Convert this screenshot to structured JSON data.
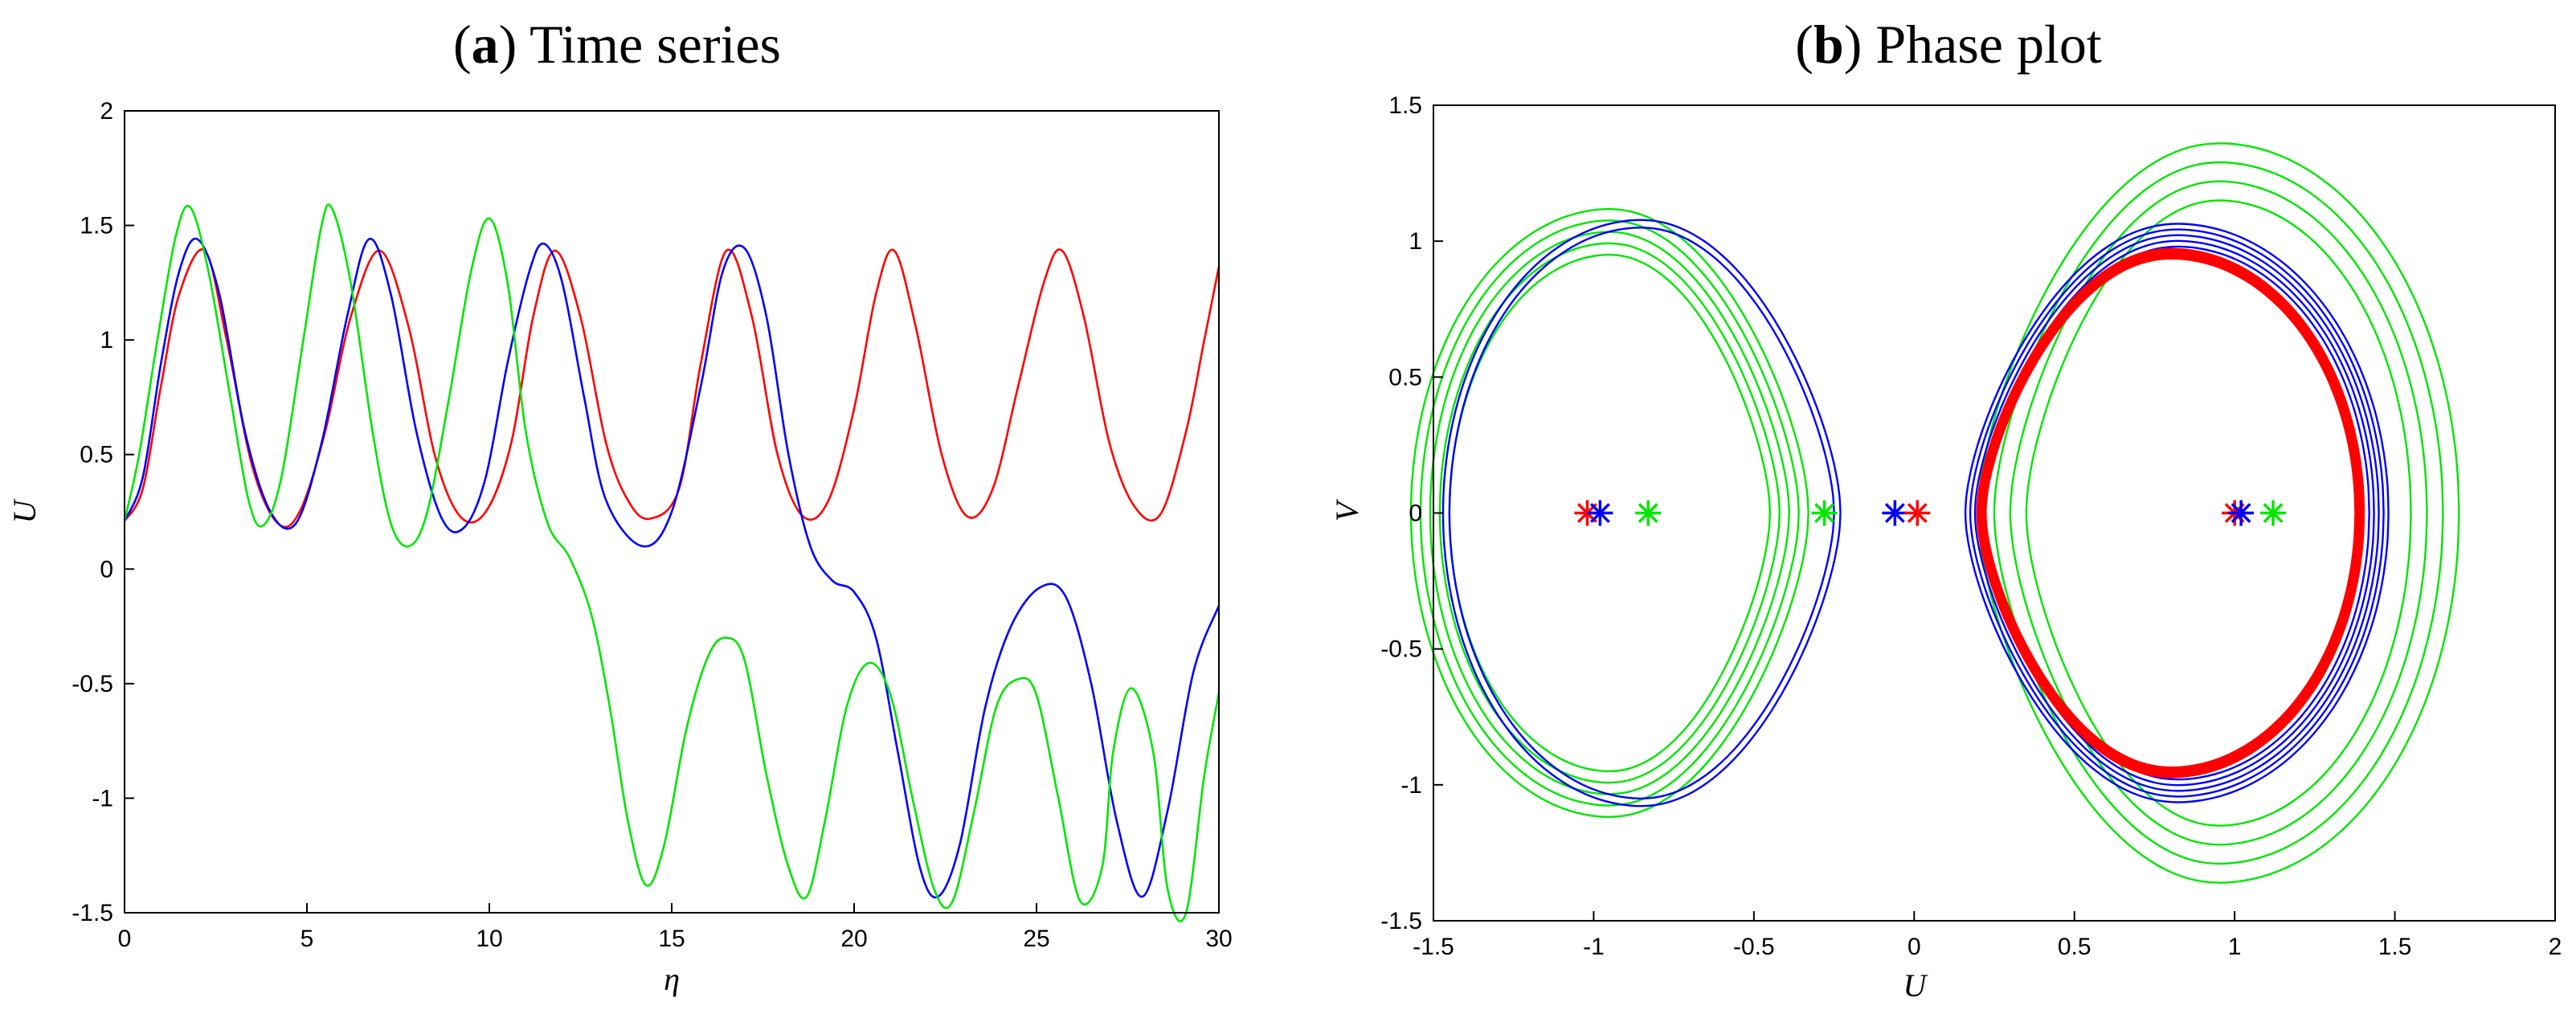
{
  "chart_data": [
    {
      "type": "line",
      "title_letter": "a",
      "title_rest": "Time series",
      "xlabel": "η",
      "ylabel": "U",
      "xlim": [
        0,
        30
      ],
      "ylim": [
        -1.5,
        2
      ],
      "xticks": [
        "0",
        "5",
        "10",
        "15",
        "20",
        "25",
        "30"
      ],
      "yticks": [
        "-1.5",
        "-1",
        "-0.5",
        "0",
        "0.5",
        "1",
        "1.5",
        "2"
      ],
      "grid": false,
      "series": [
        {
          "color": "#ff0000",
          "x": [
            0,
            0.5,
            1,
            1.5,
            2.2,
            2.8,
            3.5,
            4.2,
            4.8,
            5.5,
            6.2,
            7,
            7.8,
            8.5,
            9.2,
            9.9,
            10.6,
            11.2,
            11.8,
            12.5,
            13.2,
            13.8,
            14.4,
            15.2,
            15.8,
            16.5,
            17.2,
            17.9,
            18.6,
            19.3,
            20,
            20.6,
            21.1,
            21.7,
            22.4,
            23.1,
            23.8,
            24.5,
            25.2,
            25.7,
            26.3,
            27,
            27.7,
            28.4,
            29.1,
            29.6,
            30
          ],
          "y": [
            0.21,
            0.35,
            0.8,
            1.2,
            1.39,
            1.0,
            0.45,
            0.2,
            0.25,
            0.6,
            1.1,
            1.39,
            1.05,
            0.5,
            0.23,
            0.25,
            0.55,
            1.1,
            1.39,
            1.1,
            0.55,
            0.3,
            0.22,
            0.35,
            0.9,
            1.39,
            1.1,
            0.5,
            0.23,
            0.3,
            0.7,
            1.2,
            1.39,
            1.05,
            0.5,
            0.23,
            0.35,
            0.8,
            1.25,
            1.39,
            1.1,
            0.55,
            0.27,
            0.24,
            0.6,
            1.0,
            1.32
          ]
        },
        {
          "color": "#0000ff",
          "x": [
            0,
            0.5,
            1,
            1.5,
            2,
            2.6,
            3.3,
            4,
            4.7,
            5.4,
            6.1,
            6.7,
            7.3,
            8,
            8.7,
            9.3,
            9.9,
            10.5,
            11.1,
            11.5,
            12,
            12.6,
            13.2,
            14.2,
            15,
            15.8,
            16.4,
            17,
            17.6,
            18.2,
            18.8,
            19.4,
            20,
            20.6,
            21.2,
            21.8,
            22.3,
            22.9,
            23.6,
            24.3,
            25.1,
            25.8,
            26.5,
            27.2,
            27.9,
            28.6,
            29.3,
            30
          ],
          "y": [
            0.21,
            0.4,
            0.9,
            1.3,
            1.44,
            1.2,
            0.6,
            0.25,
            0.2,
            0.55,
            1.1,
            1.44,
            1.2,
            0.6,
            0.22,
            0.18,
            0.4,
            0.9,
            1.3,
            1.42,
            1.25,
            0.75,
            0.3,
            0.1,
            0.25,
            0.8,
            1.3,
            1.4,
            1.1,
            0.5,
            0.1,
            -0.05,
            -0.1,
            -0.3,
            -0.8,
            -1.3,
            -1.43,
            -1.2,
            -0.6,
            -0.25,
            -0.08,
            -0.12,
            -0.5,
            -1.1,
            -1.43,
            -1.05,
            -0.45,
            -0.16
          ]
        },
        {
          "color": "#00e600",
          "x": [
            0,
            0.4,
            0.9,
            1.4,
            1.8,
            2.3,
            2.9,
            3.4,
            3.8,
            4.3,
            4.9,
            5.4,
            5.7,
            6.2,
            6.8,
            7.3,
            7.8,
            8.3,
            8.9,
            9.5,
            10,
            10.5,
            11,
            11.6,
            12.2,
            12.8,
            13.3,
            13.8,
            14.3,
            14.8,
            15.4,
            16,
            16.5,
            17,
            17.6,
            18.2,
            18.7,
            19.2,
            19.8,
            20.4,
            21,
            21.6,
            22.2,
            22.7,
            23.3,
            23.9,
            24.5,
            25,
            25.6,
            26.2,
            26.8,
            27.1,
            27.6,
            28.2,
            28.6,
            29.1,
            29.6,
            30
          ],
          "y": [
            0.21,
            0.5,
            1.0,
            1.45,
            1.58,
            1.3,
            0.75,
            0.3,
            0.19,
            0.4,
            1.0,
            1.5,
            1.57,
            1.25,
            0.6,
            0.2,
            0.1,
            0.25,
            0.75,
            1.3,
            1.53,
            1.25,
            0.6,
            0.2,
            0.05,
            -0.2,
            -0.6,
            -1.1,
            -1.38,
            -1.2,
            -0.7,
            -0.38,
            -0.3,
            -0.4,
            -0.9,
            -1.3,
            -1.43,
            -1.1,
            -0.6,
            -0.41,
            -0.55,
            -1.0,
            -1.4,
            -1.45,
            -1.05,
            -0.6,
            -0.48,
            -0.55,
            -1.0,
            -1.45,
            -1.3,
            -0.8,
            -0.52,
            -0.8,
            -1.4,
            -1.5,
            -0.9,
            -0.54
          ]
        }
      ]
    },
    {
      "type": "line",
      "title_letter": "b",
      "title_rest": "Phase plot",
      "xlabel": "U",
      "ylabel": "V",
      "xlim": [
        -1.5,
        2
      ],
      "ylim": [
        -1.5,
        1.5
      ],
      "xticks": [
        "-1.5",
        "-1",
        "-0.5",
        "0",
        "0.5",
        "1",
        "1.5",
        "2"
      ],
      "yticks": [
        "-1.5",
        "-1",
        "-0.5",
        "0",
        "0.5",
        "1",
        "1.5"
      ],
      "grid": false,
      "series": [
        {
          "color": "#00e600",
          "loops": [
            {
              "cx": -0.95,
              "rx": 0.5,
              "ry": 0.95,
              "n": 5,
              "grow": 0.03
            },
            {
              "cx": 0.95,
              "rx": 0.6,
              "ry": 1.15,
              "n": 4,
              "grow": 0.05
            }
          ]
        },
        {
          "color": "#0000ff",
          "loops": [
            {
              "cx": -0.85,
              "rx": 0.6,
              "ry": 1.05,
              "n": 2,
              "grow": 0.02
            },
            {
              "cx": 0.82,
              "rx": 0.6,
              "ry": 0.98,
              "n": 5,
              "grow": 0.015
            }
          ]
        },
        {
          "color": "#ff0000",
          "loops": [
            {
              "cx": 0.8,
              "rx": 0.58,
              "ry": 0.94,
              "n": 6,
              "grow": 0.004
            }
          ]
        }
      ],
      "markers": [
        {
          "x": -1.02,
          "y": 0,
          "color": "#ff0000"
        },
        {
          "x": -0.98,
          "y": 0,
          "color": "#0000ff"
        },
        {
          "x": -0.83,
          "y": 0,
          "color": "#00e600"
        },
        {
          "x": -0.28,
          "y": 0,
          "color": "#00e600"
        },
        {
          "x": -0.06,
          "y": 0,
          "color": "#0000ff"
        },
        {
          "x": 0.01,
          "y": 0,
          "color": "#ff0000"
        },
        {
          "x": 1.0,
          "y": 0,
          "color": "#ff0000"
        },
        {
          "x": 1.02,
          "y": 0,
          "color": "#0000ff"
        },
        {
          "x": 1.12,
          "y": 0,
          "color": "#00e600"
        }
      ]
    }
  ]
}
